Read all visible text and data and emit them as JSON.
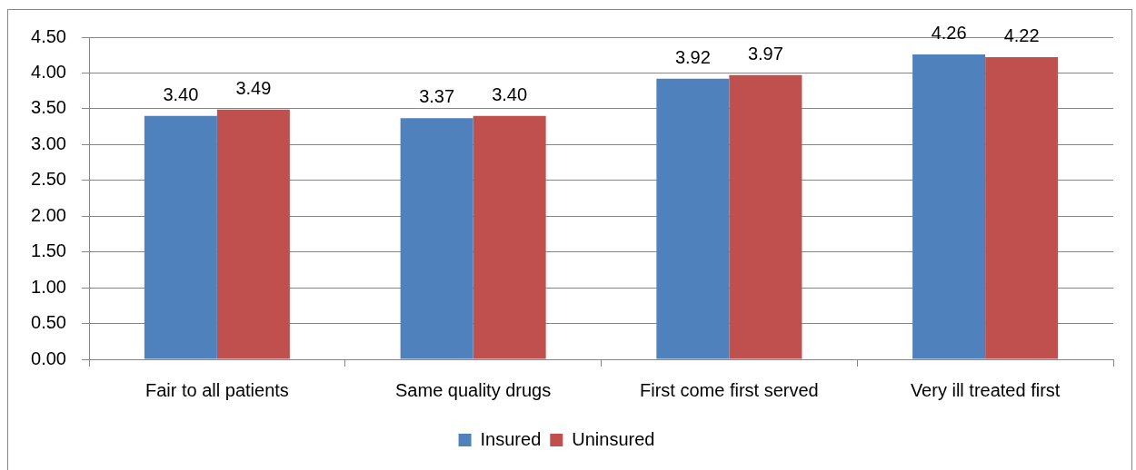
{
  "chart_data": {
    "type": "bar",
    "categories": [
      "Fair to all patients",
      "Same quality drugs",
      "First come first served",
      "Very ill treated first"
    ],
    "series": [
      {
        "name": "Insured",
        "color": "#4f81bd",
        "values": [
          3.4,
          3.37,
          3.92,
          4.26
        ],
        "value_labels": [
          "3.40",
          "3.37",
          "3.92",
          "4.26"
        ]
      },
      {
        "name": "Uninsured",
        "color": "#c0504d",
        "values": [
          3.49,
          3.4,
          3.97,
          4.22
        ],
        "value_labels": [
          "3.49",
          "3.40",
          "3.97",
          "4.22"
        ]
      }
    ],
    "ylim": [
      0,
      4.5
    ],
    "yticks": [
      {
        "value": 0,
        "label": "0.00"
      },
      {
        "value": 0.5,
        "label": "0.50"
      },
      {
        "value": 1,
        "label": "1.00"
      },
      {
        "value": 1.5,
        "label": "1.50"
      },
      {
        "value": 2,
        "label": "2.00"
      },
      {
        "value": 2.5,
        "label": "2.50"
      },
      {
        "value": 3,
        "label": "3.00"
      },
      {
        "value": 3.5,
        "label": "3.50"
      },
      {
        "value": 4,
        "label": "4.00"
      },
      {
        "value": 4.5,
        "label": "4.50"
      }
    ],
    "grid": "y",
    "legend": "bottom"
  }
}
